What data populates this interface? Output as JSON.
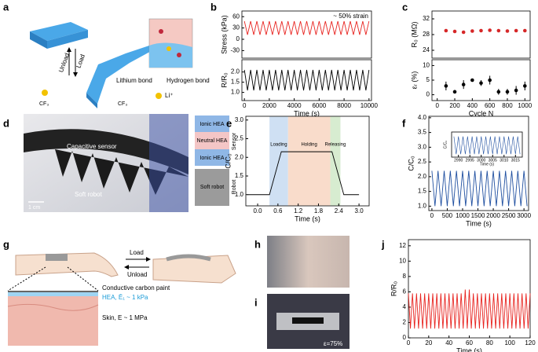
{
  "figure": {
    "panel_labels": [
      "a",
      "b",
      "c",
      "d",
      "e",
      "f",
      "g",
      "h",
      "i",
      "j"
    ],
    "a": [
      "Unload",
      "Load",
      "Lithium bond",
      "Hydrogen bond",
      "Li⁺",
      "CF₃",
      "CF₃"
    ],
    "d": [
      "Capacitive sensor",
      "Soft robot",
      "1 cm",
      "Ionic HEA",
      "Neutral HEA",
      "Ionic HEA",
      "Soft robot",
      "Sensor",
      "Robot"
    ],
    "g": [
      "Load",
      "Unload",
      "Conductive carbon paint",
      "HEA, Ē₁ ~ 1 kPa",
      "Skin, E ~ 1 MPa"
    ],
    "i": [
      "ε=75%"
    ]
  },
  "chart_data": [
    {
      "type": "line",
      "ylabel": "Stress (kPa)",
      "annotation": "~ 50% strain",
      "color": "#e8231f",
      "x": [
        0,
        250,
        500,
        750,
        1000,
        1250,
        1500,
        1750,
        2000,
        2250,
        2500,
        2750,
        3000,
        3250,
        3500,
        3750,
        4000,
        4250,
        4500,
        4750,
        5000,
        5250,
        5500,
        5750,
        6000,
        6250,
        6500,
        6750,
        7000,
        7250,
        7500,
        7750,
        8000,
        8250,
        8500,
        8750,
        9000,
        9250,
        9500,
        9750,
        10000
      ],
      "values": [
        48,
        12,
        48,
        12,
        48,
        12,
        48,
        12,
        48,
        12,
        48,
        12,
        48,
        12,
        48,
        12,
        48,
        12,
        48,
        12,
        48,
        12,
        48,
        12,
        48,
        12,
        48,
        12,
        48,
        12,
        48,
        12,
        48,
        12,
        48,
        12,
        48,
        12,
        48,
        12,
        48
      ],
      "xlim": [
        -200,
        10200
      ],
      "ylim": [
        -50,
        75
      ],
      "yticks": [
        -30,
        0,
        30,
        60
      ]
    },
    {
      "type": "line",
      "ylabel": "R/R₀",
      "xlabel": "Time (s)",
      "color": "#000000",
      "x": [
        0,
        250,
        500,
        750,
        1000,
        1250,
        1500,
        1750,
        2000,
        2250,
        2500,
        2750,
        3000,
        3250,
        3500,
        3750,
        4000,
        4250,
        4500,
        4750,
        5000,
        5250,
        5500,
        5750,
        6000,
        6250,
        6500,
        6750,
        7000,
        7250,
        7500,
        7750,
        8000,
        8250,
        8500,
        8750,
        9000,
        9250,
        9500,
        9750,
        10000
      ],
      "values": [
        2.1,
        1.1,
        2.1,
        1.1,
        2.1,
        1.1,
        2.1,
        1.1,
        2.1,
        1.1,
        2.1,
        1.1,
        2.1,
        1.1,
        2.1,
        1.1,
        2.1,
        1.1,
        2.1,
        1.1,
        2.1,
        1.1,
        2.1,
        1.1,
        2.1,
        1.1,
        2.1,
        1.1,
        2.1,
        1.1,
        2.1,
        1.1,
        2.1,
        1.1,
        2.1,
        1.1,
        2.1,
        1.1,
        2.1,
        1.1,
        2.1
      ],
      "xlim": [
        -200,
        10200
      ],
      "ylim": [
        0.6,
        2.6
      ],
      "xticks": [
        0,
        2000,
        4000,
        6000,
        8000,
        10000
      ],
      "yticks": [
        {
          "value": 1,
          "label": "1.0"
        },
        1.5,
        {
          "value": 2,
          "label": "2.0"
        }
      ]
    },
    {
      "type": "scatter",
      "ylabel": "R₀ (MΩ)",
      "color": "#d62728",
      "x": [
        100,
        200,
        300,
        400,
        500,
        600,
        700,
        800,
        900,
        1000
      ],
      "values": [
        29,
        28.8,
        28.6,
        28.9,
        29,
        29.1,
        29,
        28.9,
        29,
        29
      ],
      "xlim": [
        -60,
        1060
      ],
      "ylim": [
        22,
        34
      ],
      "yticks": [
        24,
        28,
        32
      ]
    },
    {
      "type": "scatter",
      "ylabel": "εᵣ (%)",
      "xlabel": "Cycle N",
      "color": "#000000",
      "x": [
        100,
        200,
        300,
        400,
        500,
        600,
        700,
        800,
        900,
        1000
      ],
      "values": [
        3,
        1,
        3.5,
        5,
        4,
        5,
        1,
        1,
        1.5,
        3
      ],
      "errors": [
        1.5,
        0.5,
        1.5,
        0.5,
        1,
        1.5,
        1,
        1,
        1.5,
        1.5
      ],
      "xlim": [
        -60,
        1060
      ],
      "ylim": [
        -2,
        12
      ],
      "yticks": [
        0,
        5,
        10
      ],
      "xticks": [
        0,
        200,
        400,
        600,
        800,
        1000
      ]
    },
    {
      "type": "line",
      "ylabel": "C/C₀",
      "xlabel": "Time (s)",
      "color": "#000000",
      "x": [
        -0.3,
        0.35,
        0.7,
        2.2,
        2.55,
        3.0
      ],
      "values": [
        1.0,
        1.0,
        2.15,
        2.15,
        1.0,
        1.0
      ],
      "regions": [
        {
          "name": "Loading",
          "from": 0.35,
          "to": 0.9,
          "color": "#cfe0f3"
        },
        {
          "name": "Holding",
          "from": 0.9,
          "to": 2.15,
          "color": "#f9dccb"
        },
        {
          "name": "Releasing",
          "from": 2.15,
          "to": 2.45,
          "color": "#d7ecd0"
        }
      ],
      "xlim": [
        -0.35,
        3.3
      ],
      "ylim": [
        0.7,
        3.1
      ],
      "xticks": [
        {
          "value": 0,
          "label": "0.0"
        },
        0.6,
        1.2,
        1.8,
        2.4,
        {
          "value": 3,
          "label": "3.0"
        }
      ],
      "yticks": [
        {
          "value": 1,
          "label": "1.0"
        },
        1.5,
        {
          "value": 2,
          "label": "2.0"
        },
        2.5,
        {
          "value": 3,
          "label": "3.0"
        }
      ]
    },
    {
      "type": "line",
      "ylabel": "C/C₀",
      "xlabel": "Time (s)",
      "color": "#1f4fa0",
      "x": [
        0,
        100,
        200,
        300,
        400,
        500,
        600,
        700,
        800,
        900,
        1000,
        1100,
        1200,
        1300,
        1400,
        1500,
        1600,
        1700,
        1800,
        1900,
        2000,
        2100,
        2200,
        2300,
        2400,
        2500,
        2600,
        2700,
        2800,
        2900,
        3000,
        3100
      ],
      "values": [
        2.2,
        1.0,
        2.2,
        1.0,
        2.2,
        1.0,
        2.2,
        1.0,
        2.2,
        1.0,
        2.2,
        1.0,
        2.2,
        1.0,
        2.2,
        1.0,
        2.2,
        1.0,
        2.2,
        1.0,
        2.2,
        1.0,
        2.2,
        1.0,
        2.2,
        1.0,
        2.2,
        1.0,
        2.2,
        1.0,
        2.2,
        1.0
      ],
      "xlim": [
        -100,
        3150
      ],
      "ylim": [
        0.85,
        4.05
      ],
      "xticks": [
        0,
        500,
        1000,
        1500,
        2000,
        2500,
        3000
      ],
      "yticks": [
        {
          "value": 1,
          "label": "1.0"
        },
        1.5,
        {
          "value": 2,
          "label": "2.0"
        },
        2.5,
        {
          "value": 3,
          "label": "3.0"
        },
        3.5,
        {
          "value": 4,
          "label": "4.0"
        }
      ]
    },
    {
      "type": "line",
      "ylabel": "C/C₀",
      "xlabel": "Time (s)",
      "color": "#1f4fa0",
      "x": [
        2988,
        2989,
        2990,
        2991,
        2992,
        2993,
        2994,
        2995,
        2996,
        2997,
        2998,
        2999,
        3000,
        3001,
        3002,
        3003,
        3004,
        3005,
        3006,
        3007,
        3008,
        3009,
        3010,
        3011,
        3012,
        3013,
        3014,
        3015,
        3016,
        3017
      ],
      "values": [
        2.2,
        1.0,
        2.2,
        1.0,
        2.2,
        1.0,
        2.2,
        1.0,
        2.2,
        1.0,
        2.2,
        1.0,
        2.2,
        1.0,
        2.2,
        1.0,
        2.2,
        1.0,
        2.2,
        1.0,
        2.2,
        1.0,
        2.2,
        1.0,
        2.2,
        1.0,
        2.2,
        1.0,
        2.2,
        1.0
      ],
      "xlim": [
        2987,
        3018
      ],
      "ylim": [
        0.8,
        2.5
      ],
      "xticks": [
        2990,
        2995,
        3000,
        3005,
        3010,
        3015
      ]
    },
    {
      "type": "line",
      "ylabel": "R/R₀",
      "xlabel": "Time (s)",
      "color": "#e8231f",
      "x": [
        0,
        2,
        4,
        6,
        8,
        10,
        12,
        14,
        16,
        18,
        20,
        22,
        24,
        26,
        28,
        30,
        32,
        34,
        36,
        38,
        40,
        42,
        44,
        46,
        48,
        50,
        52,
        54,
        56,
        58,
        60,
        62,
        64,
        66,
        68,
        70,
        72,
        74,
        76,
        78,
        80,
        82,
        84,
        86,
        88,
        90,
        92,
        94,
        96,
        98,
        100,
        102,
        104,
        106,
        108,
        110,
        112,
        114,
        116,
        118,
        120
      ],
      "values": [
        5.8,
        1.2,
        5.8,
        1.2,
        5.8,
        1.2,
        5.8,
        1.2,
        5.8,
        1.2,
        5.8,
        1.2,
        5.8,
        1.2,
        5.8,
        1.2,
        5.8,
        1.2,
        5.8,
        1.2,
        5.8,
        1.2,
        5.8,
        1.2,
        5.8,
        1.2,
        5.8,
        1.2,
        6.3,
        1.2,
        6.3,
        1.2,
        5.8,
        1.2,
        5.8,
        1.2,
        5.8,
        1.2,
        5.8,
        1.2,
        5.8,
        1.2,
        5.8,
        1.2,
        5.8,
        1.2,
        5.8,
        1.2,
        5.8,
        1.2,
        5.8,
        1.2,
        5.8,
        1.2,
        5.8,
        1.2,
        5.8,
        1.2,
        5.8,
        1.2,
        5.8
      ],
      "xlim": [
        0,
        120
      ],
      "ylim": [
        0,
        12.8
      ],
      "xticks": [
        0,
        20,
        40,
        60,
        80,
        100,
        120
      ],
      "yticks": [
        0,
        2,
        4,
        6,
        8,
        10,
        12
      ]
    }
  ]
}
